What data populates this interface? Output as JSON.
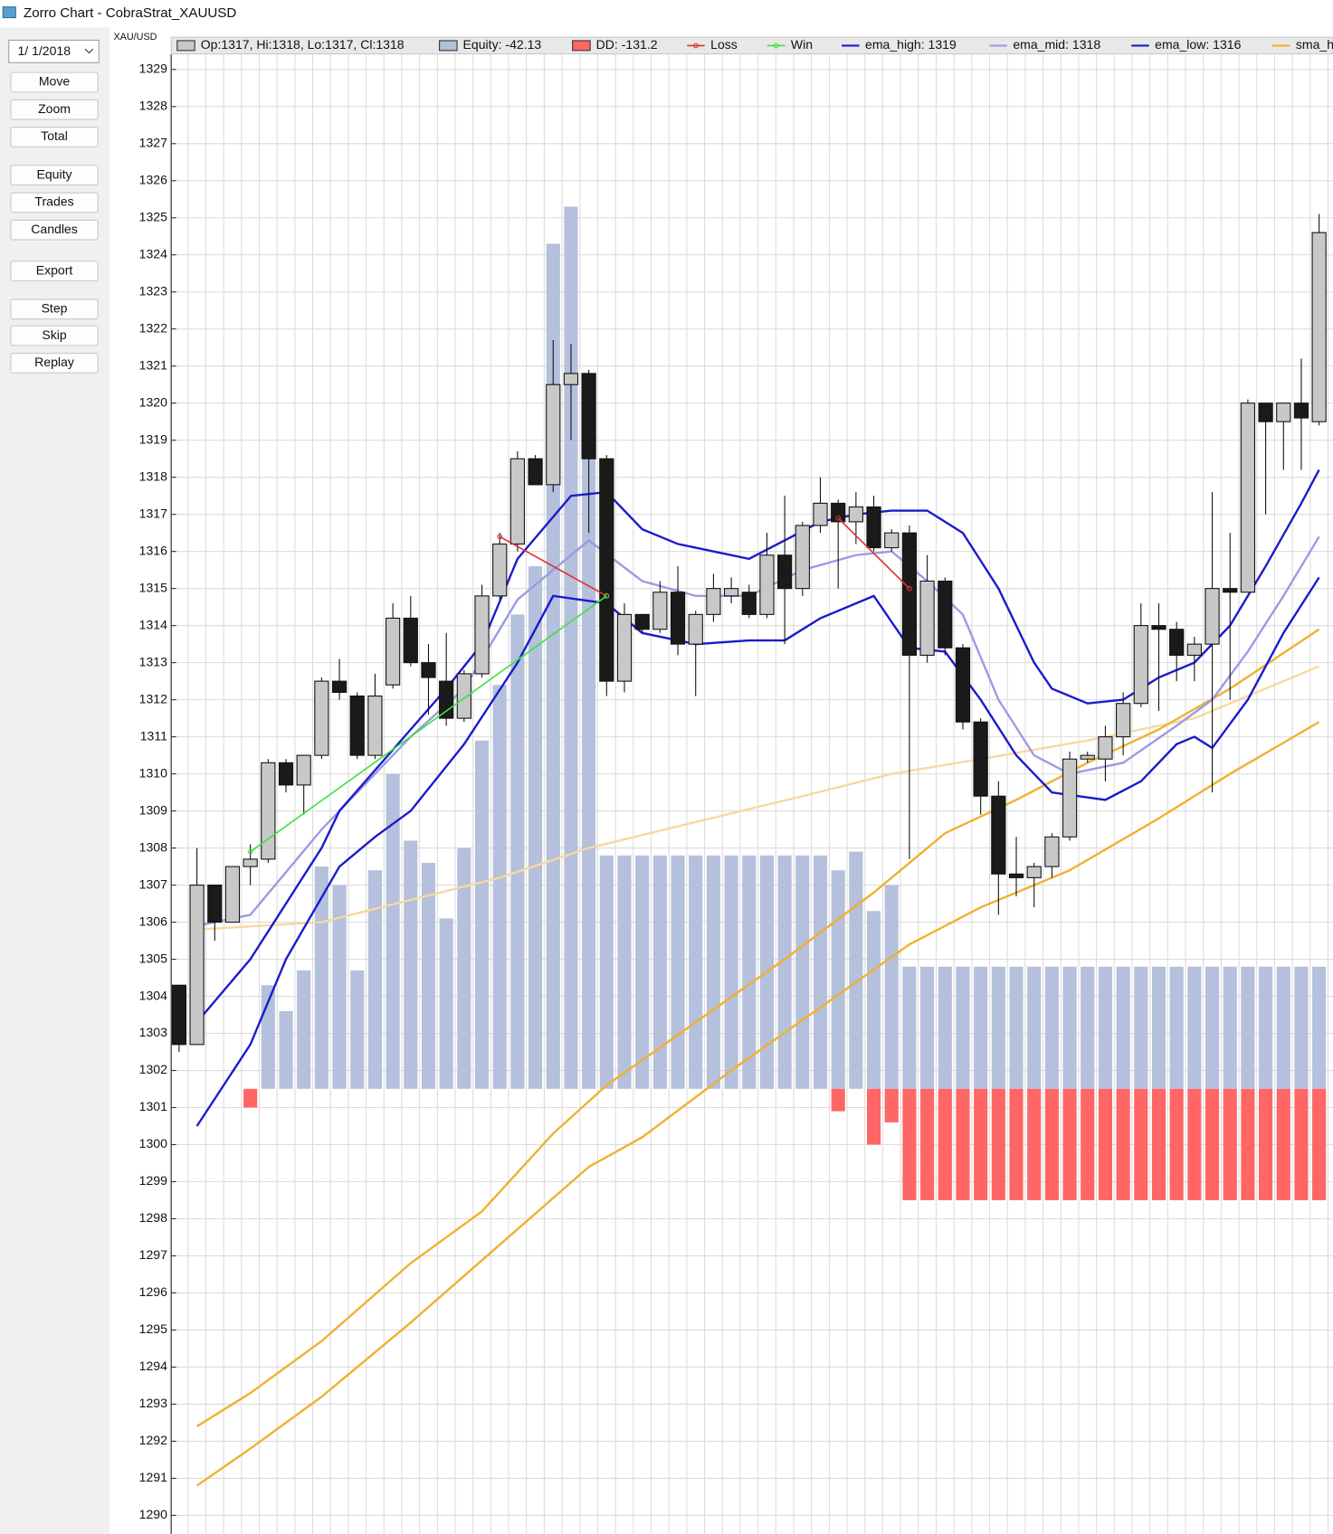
{
  "window": {
    "title": "Zorro Chart - CobraStrat_XAUUSD",
    "date": "1/ 1/2018",
    "buttons": [
      "Move",
      "Zoom",
      "Total",
      "Equity",
      "Trades",
      "Candles",
      "Export",
      "Step",
      "Skip",
      "Replay"
    ]
  },
  "chart_data": {
    "type": "candlestick",
    "ylabel": "XAU/USD",
    "ylim": [
      1289.5,
      1329.42
    ],
    "yticks": [
      1290,
      1291,
      1292,
      1293,
      1294,
      1295,
      1296,
      1297,
      1298,
      1299,
      1300,
      1301,
      1302,
      1303,
      1304,
      1305,
      1306,
      1307,
      1308,
      1309,
      1310,
      1311,
      1312,
      1313,
      1314,
      1315,
      1316,
      1317,
      1318,
      1319,
      1320,
      1321,
      1322,
      1323,
      1324,
      1325,
      1326,
      1327,
      1328,
      1329
    ],
    "grid": true,
    "candles": {
      "name": "Op:1317, Hi:1318, Lo:1317, Cl:1318",
      "up_color": "#c8c8c8",
      "down_color": "#1a1a1a",
      "open": [
        1304.3,
        1302.7,
        1307,
        1306,
        1307.5,
        1307.7,
        1310.3,
        1309.7,
        1310.5,
        1312.5,
        1312.1,
        1310.5,
        1312.4,
        1314.2,
        1313,
        1312.5,
        1311.5,
        1312.7,
        1314.8,
        1316.2,
        1318.5,
        1317.8,
        1320.5,
        1320.8,
        1318.5,
        1312.5,
        1314.3,
        1313.9,
        1314.9,
        1313.5,
        1314.3,
        1314.8,
        1314.9,
        1314.3,
        1315.9,
        1315,
        1316.7,
        1317.3,
        1316.8,
        1317.2,
        1316.1,
        1316.5,
        1313.2,
        1315.2,
        1313.4,
        1311.4,
        1309.4,
        1307.3,
        1307.2,
        1307.5,
        1308.3,
        1310.4,
        1310.4,
        1311,
        1311.9,
        1314,
        1313.9,
        1313.2,
        1313.5,
        1315,
        1314.9,
        1320,
        1319.5,
        1320,
        1319.5
      ],
      "high": [
        1304.3,
        1308,
        1307,
        1307.5,
        1308.1,
        1310.4,
        1310.4,
        1310.5,
        1312.6,
        1313.1,
        1312.2,
        1312.7,
        1314.6,
        1314.8,
        1313.5,
        1313.8,
        1312.8,
        1315.1,
        1316.5,
        1318.7,
        1318.6,
        1321.7,
        1321.6,
        1320.9,
        1318.6,
        1314.6,
        1314.3,
        1315.2,
        1315.6,
        1314.4,
        1315.4,
        1315.3,
        1315.1,
        1316.5,
        1317.5,
        1316.8,
        1318,
        1317.4,
        1317.6,
        1317.5,
        1316.6,
        1316.7,
        1315.9,
        1315.3,
        1313.5,
        1311.5,
        1309.8,
        1308.3,
        1307.6,
        1308.4,
        1310.6,
        1310.6,
        1311.3,
        1312.2,
        1314.6,
        1314.6,
        1314.1,
        1313.7,
        1317.6,
        1316.5,
        1320.1,
        1320,
        1320,
        1321.2,
        1325.1
      ],
      "low": [
        1302.5,
        1302.7,
        1305.5,
        1306,
        1307,
        1307.6,
        1309.5,
        1308.9,
        1310.4,
        1312,
        1310.4,
        1310.4,
        1312.3,
        1312.9,
        1311.6,
        1311.3,
        1311.4,
        1312.6,
        1314.7,
        1316,
        1317.8,
        1317.6,
        1319,
        1316.5,
        1312.1,
        1312.2,
        1313.8,
        1313.8,
        1313.2,
        1312.1,
        1314.1,
        1314.6,
        1314.2,
        1314.2,
        1313.5,
        1314.8,
        1316.5,
        1315,
        1316.2,
        1316,
        1316,
        1307.7,
        1313,
        1313.2,
        1311.2,
        1308.9,
        1306.2,
        1306.7,
        1306.4,
        1307.2,
        1308.2,
        1310.3,
        1309.8,
        1310.5,
        1311.8,
        1311.7,
        1312.5,
        1312.5,
        1309.5,
        1312,
        1314.9,
        1317,
        1318.2,
        1318.2,
        1319.4
      ],
      "close": [
        1302.7,
        1307,
        1306,
        1307.5,
        1307.7,
        1310.3,
        1309.7,
        1310.5,
        1312.5,
        1312.2,
        1310.5,
        1312.1,
        1314.2,
        1313,
        1312.6,
        1311.5,
        1312.7,
        1314.8,
        1316.2,
        1318.5,
        1317.8,
        1320.5,
        1320.8,
        1318.5,
        1312.5,
        1314.3,
        1313.9,
        1314.9,
        1313.5,
        1314.3,
        1315,
        1315,
        1314.3,
        1315.9,
        1315,
        1316.7,
        1317.3,
        1316.8,
        1317.2,
        1316.1,
        1316.5,
        1313.2,
        1315.2,
        1313.4,
        1311.4,
        1309.4,
        1307.3,
        1307.2,
        1307.5,
        1308.3,
        1310.4,
        1310.5,
        1311,
        1311.9,
        1314,
        1313.9,
        1313.2,
        1313.5,
        1315,
        1314.9,
        1320,
        1319.5,
        1320,
        1319.6,
        1324.6
      ]
    },
    "bars": [
      {
        "name": "Equity: -42.13",
        "color": "#b4c0dc",
        "values": [
          null,
          null,
          null,
          null,
          null,
          1304.3,
          1303.6,
          1304.7,
          1307.5,
          1307,
          1304.7,
          1307.4,
          1310,
          1308.2,
          1307.6,
          1306.1,
          1308,
          1310.9,
          1312.4,
          1314.3,
          1315.6,
          1324.3,
          1325.3,
          1318.5,
          1307.8,
          1307.8,
          1307.8,
          1307.8,
          1307.8,
          1307.8,
          1307.8,
          1307.8,
          1307.8,
          1307.8,
          1307.8,
          1307.8,
          1307.8,
          1307.4,
          1307.9,
          1306.3,
          1307,
          1304.8,
          1304.8,
          1304.8,
          1304.8,
          1304.8,
          1304.8,
          1304.8,
          1304.8,
          1304.8,
          1304.8,
          1304.8,
          1304.8,
          1304.8,
          1304.8,
          1304.8,
          1304.8,
          1304.8,
          1304.8,
          1304.8,
          1304.8,
          1304.8,
          1304.8,
          1304.8,
          1304.8
        ]
      },
      {
        "name": "DD: -131.2",
        "color": "#ff6666",
        "values": [
          null,
          null,
          null,
          null,
          1301,
          null,
          null,
          null,
          null,
          null,
          null,
          null,
          null,
          null,
          null,
          null,
          null,
          null,
          null,
          null,
          null,
          null,
          null,
          null,
          null,
          null,
          null,
          null,
          null,
          null,
          null,
          null,
          null,
          null,
          null,
          null,
          null,
          1300.9,
          null,
          1300,
          1300.6,
          1298.5,
          1298.5,
          1298.5,
          1298.5,
          1298.5,
          1298.5,
          1298.5,
          1298.5,
          1298.5,
          1298.5,
          1298.5,
          1298.5,
          1298.5,
          1298.5,
          1298.5,
          1298.5,
          1298.5,
          1298.5,
          1298.5,
          1298.5,
          1298.5,
          1298.5,
          1298.5,
          1298.5
        ]
      }
    ],
    "trades": [
      {
        "name": "Loss",
        "color": "#e03030",
        "entries": [
          {
            "x": [
              18,
              24
            ],
            "y": [
              1316.4,
              1314.8
            ]
          },
          {
            "x": [
              37,
              41
            ],
            "y": [
              1316.9,
              1315
            ]
          }
        ]
      },
      {
        "name": "Win",
        "color": "#40e040",
        "entries": [
          {
            "x": [
              4,
              24
            ],
            "y": [
              1307.9,
              1314.8
            ]
          }
        ]
      }
    ],
    "series": [
      {
        "name": "ema_high: 1319",
        "color": "#1a1acc",
        "x": [
          1,
          4,
          8,
          9,
          13,
          15,
          17,
          19,
          22,
          24,
          26,
          28,
          32,
          34,
          36,
          38,
          40,
          42,
          44,
          46,
          48,
          49,
          51,
          53,
          55,
          57,
          59,
          61,
          63,
          64
        ],
        "values": [
          1303.3,
          1305,
          1308,
          1309,
          1311.2,
          1312.3,
          1313.5,
          1315.8,
          1317.5,
          1317.6,
          1316.6,
          1316.2,
          1315.8,
          1316.3,
          1316.8,
          1317,
          1317.1,
          1317.1,
          1316.5,
          1315,
          1313,
          1312.3,
          1311.9,
          1312,
          1312.6,
          1313,
          1314,
          1315.6,
          1317.3,
          1318.2
        ]
      },
      {
        "name": "ema_mid: 1318",
        "color": "#9a9ae6",
        "x": [
          1,
          4,
          8,
          13,
          16,
          19,
          23,
          26,
          29,
          32,
          35,
          38,
          40,
          42,
          44,
          46,
          48,
          50,
          53,
          56,
          58,
          60,
          62,
          64
        ],
        "values": [
          1305.9,
          1306.2,
          1308.5,
          1311,
          1312.3,
          1314.7,
          1316.3,
          1315.2,
          1314.8,
          1314.8,
          1315.5,
          1315.9,
          1316,
          1315.2,
          1314.3,
          1312,
          1310.5,
          1310,
          1310.3,
          1311.3,
          1312,
          1313.3,
          1314.8,
          1316.4
        ]
      },
      {
        "name": "ema_low: 1316",
        "color": "#1a1acc",
        "x": [
          1,
          4,
          6,
          9,
          11,
          13,
          16,
          19,
          21,
          24,
          26,
          29,
          32,
          34,
          36,
          39,
          41,
          43,
          45,
          47,
          49,
          52,
          54,
          56,
          57,
          58,
          60,
          62,
          64
        ],
        "values": [
          1300.5,
          1302.7,
          1305,
          1307.5,
          1308.3,
          1309,
          1310.8,
          1313,
          1314.8,
          1314.6,
          1313.8,
          1313.5,
          1313.6,
          1313.6,
          1314.2,
          1314.8,
          1313.4,
          1313.3,
          1312,
          1310.5,
          1309.5,
          1309.3,
          1309.8,
          1310.8,
          1311,
          1310.7,
          1312,
          1313.8,
          1315.3
        ]
      },
      {
        "name": "sma_h",
        "color": "#f0b030",
        "x": [
          1,
          4,
          8,
          13,
          17,
          21,
          24,
          29,
          34,
          39,
          43,
          47,
          51,
          55,
          59,
          64
        ],
        "values": [
          1292.4,
          1293.3,
          1294.7,
          1296.8,
          1298.2,
          1300.3,
          1301.6,
          1303.3,
          1305,
          1306.8,
          1308.4,
          1309.3,
          1310.3,
          1311.2,
          1312.3,
          1313.9
        ]
      },
      {
        "color": "#f8d8a0",
        "x": [
          1,
          8,
          13,
          18,
          23,
          29,
          35,
          40,
          45,
          51,
          57,
          64
        ],
        "values": [
          1305.8,
          1306,
          1306.6,
          1307.2,
          1308,
          1308.7,
          1309.4,
          1310,
          1310.4,
          1310.9,
          1311.5,
          1312.9
        ]
      },
      {
        "color": "#f0b030",
        "x": [
          1,
          4,
          8,
          13,
          18,
          23,
          26,
          31,
          36,
          41,
          45,
          50,
          55,
          59,
          64
        ],
        "values": [
          1290.8,
          1291.8,
          1293.2,
          1295.2,
          1297.3,
          1299.4,
          1300.2,
          1302,
          1303.7,
          1305.4,
          1306.4,
          1307.4,
          1308.8,
          1310,
          1311.4
        ]
      }
    ]
  }
}
